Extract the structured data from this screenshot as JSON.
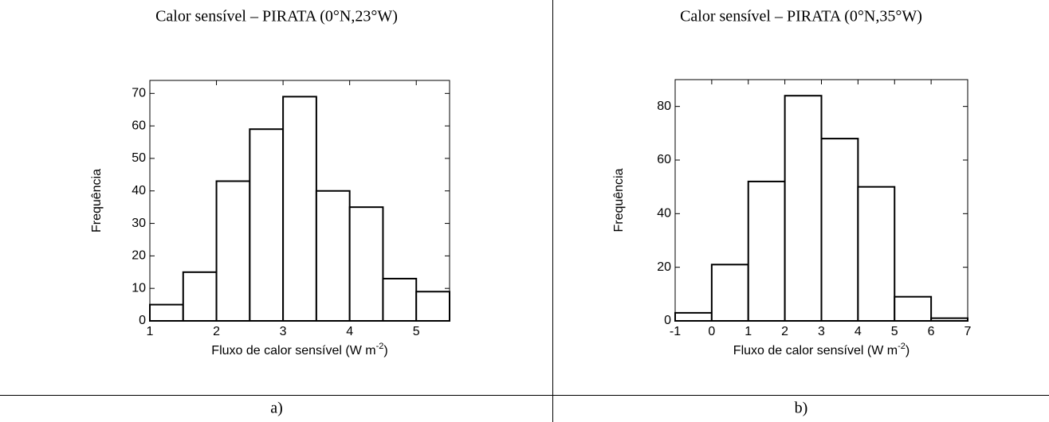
{
  "chart_data": [
    {
      "type": "histogram",
      "title": "Calor sensível – PIRATA (0°N,23°W)",
      "caption": "a)",
      "xlabel": [
        "Fluxo de calor sensível (W m",
        "-2",
        ")"
      ],
      "ylabel": "Frequência",
      "bins": [
        1,
        1.5,
        2,
        2.5,
        3,
        3.5,
        4,
        4.5,
        5,
        5.5
      ],
      "values": [
        5,
        15,
        43,
        59,
        69,
        40,
        35,
        13,
        9
      ],
      "xlim": [
        1,
        5.5
      ],
      "xticks": [
        1,
        2,
        3,
        4,
        5
      ],
      "ylim": [
        0,
        74
      ],
      "yticks": [
        0,
        10,
        20,
        30,
        40,
        50,
        60,
        70
      ],
      "color": "#ffffff"
    },
    {
      "type": "histogram",
      "title": "Calor sensível – PIRATA (0°N,35°W)",
      "caption": "b)",
      "xlabel": [
        "Fluxo de calor sensível (W m",
        "-2",
        ")"
      ],
      "ylabel": "Frequência",
      "bins": [
        -1,
        0,
        1,
        2,
        3,
        4,
        5,
        6,
        7
      ],
      "values": [
        3,
        21,
        52,
        84,
        68,
        50,
        9,
        1
      ],
      "xlim": [
        -1,
        7
      ],
      "xticks": [
        -1,
        0,
        1,
        2,
        3,
        4,
        5,
        6,
        7
      ],
      "ylim": [
        0,
        90
      ],
      "yticks": [
        0,
        20,
        40,
        60,
        80
      ],
      "color": "#ffffff"
    }
  ]
}
